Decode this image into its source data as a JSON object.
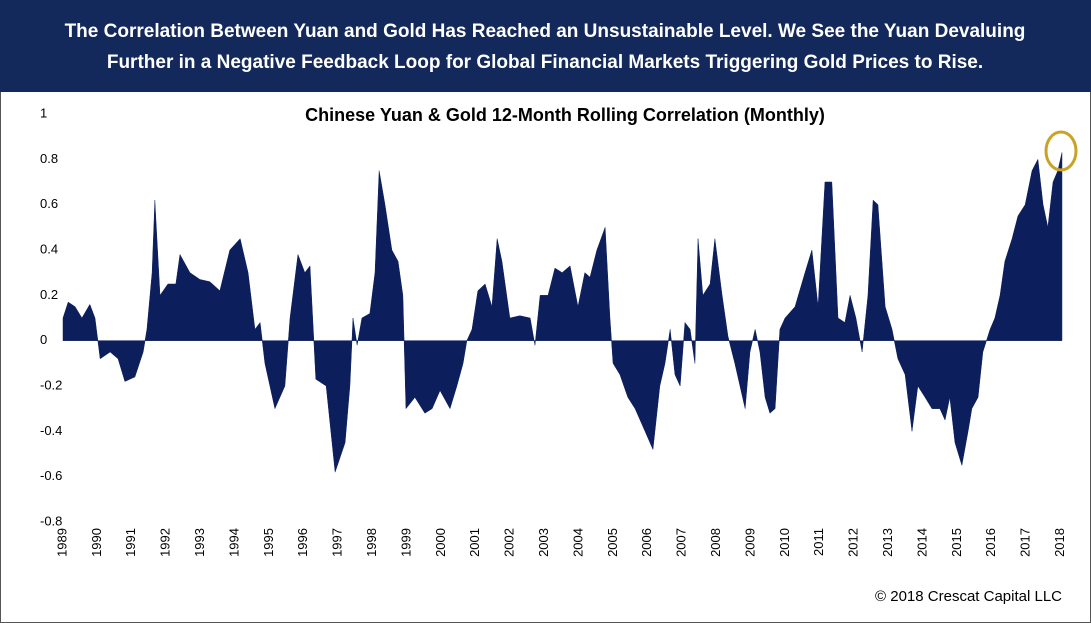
{
  "chart_data": {
    "type": "area",
    "header": [
      "The Correlation Between Yuan and Gold Has Reached an Unsustainable Level.  We See the Yuan Devaluing",
      "Further in a Negative Feedback Loop for Global Financial Markets Triggering Gold Prices to Rise."
    ],
    "title": "Chinese Yuan & Gold 12-Month Rolling Correlation (Monthly)",
    "source": "© 2018 Crescat Capital LLC",
    "color": "#0c1f5c",
    "grid": false,
    "xlim": [
      1989,
      2018.15
    ],
    "xticks": [
      1989,
      1990,
      1991,
      1992,
      1993,
      1994,
      1995,
      1996,
      1997,
      1998,
      1999,
      2000,
      2001,
      2002,
      2003,
      2004,
      2005,
      2006,
      2007,
      2008,
      2009,
      2010,
      2011,
      2012,
      2013,
      2014,
      2015,
      2016,
      2017,
      2018
    ],
    "ylim": [
      -0.8,
      1
    ],
    "yticks": [
      1,
      0.8,
      0.6,
      0.4,
      0.2,
      0,
      -0.2,
      -0.4,
      -0.6,
      -0.8
    ],
    "x": [
      1989.0,
      1989.15,
      1989.35,
      1989.55,
      1989.78,
      1989.93,
      1990.08,
      1990.37,
      1990.6,
      1990.8,
      1991.09,
      1991.33,
      1991.44,
      1991.59,
      1991.67,
      1991.82,
      1992.05,
      1992.28,
      1992.4,
      1992.69,
      1992.98,
      1993.27,
      1993.56,
      1993.85,
      1994.15,
      1994.38,
      1994.58,
      1994.73,
      1994.87,
      1995.16,
      1995.45,
      1995.6,
      1995.83,
      1996.03,
      1996.18,
      1996.35,
      1996.65,
      1996.91,
      1997.2,
      1997.34,
      1997.43,
      1997.55,
      1997.69,
      1997.92,
      1998.07,
      1998.19,
      1998.36,
      1998.56,
      1998.74,
      1998.88,
      1998.97,
      1999.23,
      1999.52,
      1999.73,
      1999.96,
      2000.25,
      2000.45,
      2000.63,
      2000.74,
      2000.89,
      2001.06,
      2001.27,
      2001.47,
      2001.62,
      2001.76,
      2001.99,
      2002.28,
      2002.58,
      2002.72,
      2002.87,
      2003.1,
      2003.3,
      2003.51,
      2003.74,
      2003.97,
      2004.17,
      2004.32,
      2004.52,
      2004.76,
      2004.9,
      2004.99,
      2005.19,
      2005.42,
      2005.63,
      2005.92,
      2006.15,
      2006.35,
      2006.5,
      2006.65,
      2006.79,
      2006.94,
      2007.08,
      2007.23,
      2007.37,
      2007.46,
      2007.6,
      2007.81,
      2007.95,
      2008.16,
      2008.33,
      2008.53,
      2008.68,
      2008.83,
      2008.97,
      2009.12,
      2009.26,
      2009.41,
      2009.55,
      2009.7,
      2009.84,
      2009.99,
      2010.28,
      2010.57,
      2010.77,
      2010.95,
      2011.15,
      2011.35,
      2011.53,
      2011.73,
      2011.88,
      2012.05,
      2012.23,
      2012.4,
      2012.55,
      2012.69,
      2012.9,
      2013.1,
      2013.27,
      2013.48,
      2013.68,
      2013.85,
      2014.06,
      2014.26,
      2014.49,
      2014.64,
      2014.78,
      2014.93,
      2015.13,
      2015.31,
      2015.42,
      2015.6,
      2015.74,
      2015.95,
      2016.09,
      2016.24,
      2016.38,
      2016.59,
      2016.76,
      2016.97,
      2017.17,
      2017.34,
      2017.49,
      2017.63,
      2017.78,
      2017.92,
      2018.04
    ],
    "values": [
      0.1,
      0.17,
      0.15,
      0.1,
      0.16,
      0.1,
      -0.08,
      -0.05,
      -0.08,
      -0.18,
      -0.16,
      -0.05,
      0.05,
      0.3,
      0.62,
      0.2,
      0.25,
      0.25,
      0.38,
      0.3,
      0.27,
      0.26,
      0.22,
      0.4,
      0.45,
      0.3,
      0.05,
      0.08,
      -0.1,
      -0.3,
      -0.2,
      0.1,
      0.38,
      0.3,
      0.33,
      -0.17,
      -0.2,
      -0.58,
      -0.45,
      -0.2,
      0.1,
      -0.02,
      0.1,
      0.12,
      0.3,
      0.75,
      0.6,
      0.4,
      0.35,
      0.2,
      -0.3,
      -0.25,
      -0.32,
      -0.3,
      -0.22,
      -0.3,
      -0.2,
      -0.1,
      0.0,
      0.05,
      0.22,
      0.25,
      0.15,
      0.45,
      0.35,
      0.1,
      0.11,
      0.1,
      -0.02,
      0.2,
      0.2,
      0.32,
      0.3,
      0.33,
      0.15,
      0.3,
      0.28,
      0.4,
      0.5,
      0.1,
      -0.1,
      -0.15,
      -0.25,
      -0.3,
      -0.4,
      -0.48,
      -0.2,
      -0.1,
      0.05,
      -0.15,
      -0.2,
      0.08,
      0.05,
      -0.1,
      0.45,
      0.2,
      0.25,
      0.45,
      0.2,
      0.02,
      -0.1,
      -0.2,
      -0.3,
      -0.05,
      0.05,
      -0.05,
      -0.25,
      -0.32,
      -0.3,
      0.05,
      0.1,
      0.15,
      0.3,
      0.4,
      0.15,
      0.7,
      0.7,
      0.1,
      0.08,
      0.2,
      0.1,
      -0.05,
      0.2,
      0.62,
      0.6,
      0.15,
      0.05,
      -0.08,
      -0.15,
      -0.4,
      -0.2,
      -0.25,
      -0.3,
      -0.3,
      -0.35,
      -0.25,
      -0.45,
      -0.55,
      -0.4,
      -0.3,
      -0.25,
      -0.05,
      0.05,
      0.1,
      0.2,
      0.35,
      0.45,
      0.55,
      0.6,
      0.75,
      0.8,
      0.6,
      0.5,
      0.7,
      0.75,
      0.83
    ]
  }
}
